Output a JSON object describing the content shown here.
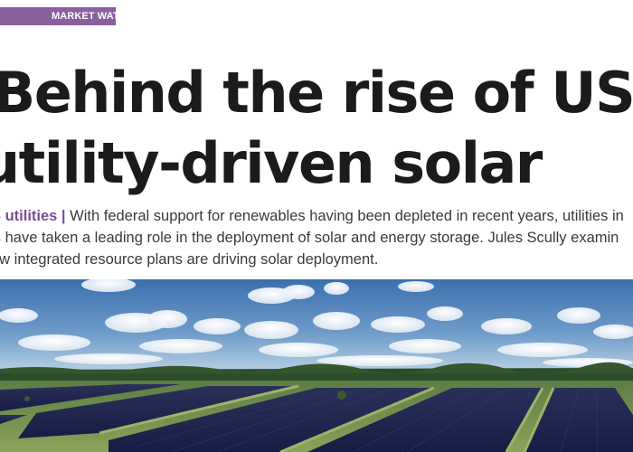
{
  "section_tag": "MARKET WATCH",
  "headline": {
    "line1": "Behind the rise of US",
    "line2": "utility-driven solar"
  },
  "standfirst": {
    "kicker": "S utilities |",
    "line1_text": " With federal support for renewables having been depleted in recent years, utilities in",
    "line2": "S have taken a leading role in the deployment of solar and energy storage. Jules Scully examin",
    "line3": "ow integrated resource plans are driving solar deployment."
  },
  "photo": {
    "subject": "aerial view of a utility-scale solar farm",
    "colors": {
      "sky_top": "#3f74b3",
      "sky_bottom": "#a9c6de",
      "treeline": "#2f4a2a",
      "grass": "#7e9a52",
      "panels": "#1e2450"
    }
  }
}
